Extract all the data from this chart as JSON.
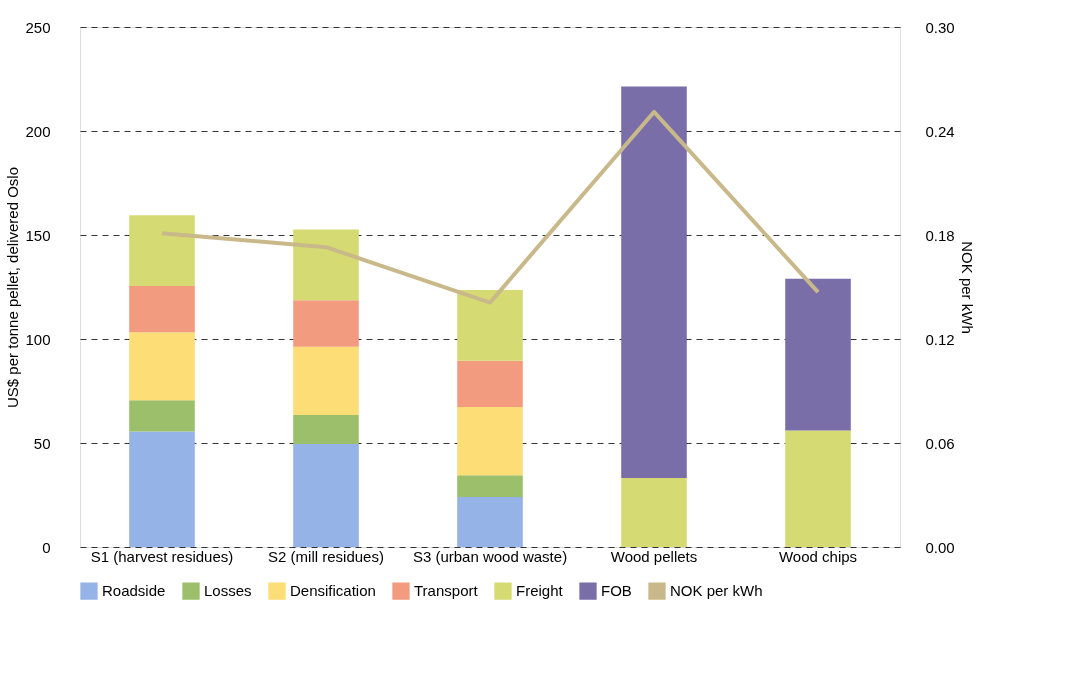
{
  "chart_data": {
    "type": "bar",
    "stacked": true,
    "ylabel": "US$ per tonne pellet, delivered Oslo",
    "y2label": "NOK per kWh",
    "categories": [
      "S1 (harvest residues)",
      "S2 (mill residues)",
      "S3 (urban wood waste)",
      "Wood pellets",
      "Wood chips"
    ],
    "series": [
      {
        "name": "Roadside",
        "color": "#95b3e6",
        "values": [
          55.5,
          49.5,
          24,
          null,
          null
        ]
      },
      {
        "name": "Losses",
        "color": "#9bbf6a",
        "values": [
          15,
          14,
          10.5,
          null,
          null
        ]
      },
      {
        "name": "Densification",
        "color": "#fddd75",
        "values": [
          32.7,
          32.8,
          32.8,
          null,
          null
        ]
      },
      {
        "name": "Transport",
        "color": "#f29b7e",
        "values": [
          22.3,
          22.3,
          22.3,
          null,
          null
        ]
      },
      {
        "name": "Freight",
        "color": "#d5db72",
        "values": [
          34,
          34,
          34,
          33.2,
          56
        ]
      },
      {
        "name": "FOB",
        "color": "#7a6ea9",
        "values": [
          null,
          null,
          null,
          188.2,
          73
        ]
      },
      {
        "name": "NOK per kWh",
        "type": "line",
        "axis": "y2",
        "color": "#c9b98a",
        "values": [
          0.181,
          0.173,
          0.141,
          0.251,
          0.147
        ]
      }
    ],
    "ylim": [
      0,
      250
    ],
    "yticks": [
      0,
      50,
      100,
      150,
      200,
      250
    ],
    "y2lim": [
      0,
      0.3
    ],
    "y2ticks": [
      {
        "value": 0,
        "label": "0.00"
      },
      {
        "value": 0.06,
        "label": "0.06"
      },
      {
        "value": 0.12,
        "label": "0.12"
      },
      {
        "value": 0.18,
        "label": "0.18"
      },
      {
        "value": 0.24,
        "label": "0.24"
      },
      {
        "value": 0.3,
        "label": "0.30"
      }
    ],
    "grid": "y",
    "legend": "bottom"
  }
}
